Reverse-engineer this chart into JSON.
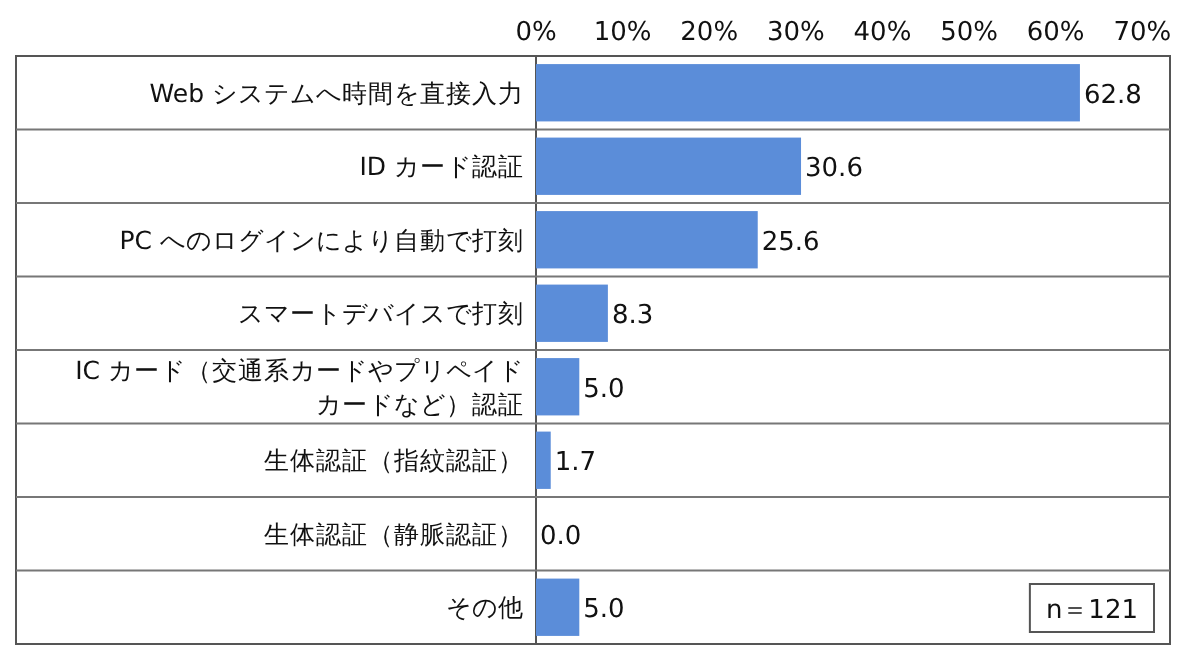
{
  "chart_data": {
    "type": "bar",
    "orientation": "horizontal",
    "categories": [
      "Web システムへ時間を直接入力",
      "ID カード認証",
      "PC へのログインにより自動で打刻",
      "スマートデバイスで打刻",
      "IC カード（交通系カードやプリペイドカードなど）認証",
      "生体認証（指紋認証）",
      "生体認証（静脈認証）",
      "その他"
    ],
    "values": [
      62.8,
      30.6,
      25.6,
      8.3,
      5.0,
      1.7,
      0.0,
      5.0
    ],
    "value_labels": [
      "62.8",
      "30.6",
      "25.6",
      "8.3",
      "5.0",
      "1.7",
      "0.0",
      "5.0"
    ],
    "color": "#5b8dd9",
    "xlim": [
      0,
      73.2
    ],
    "xticks": [
      {
        "value": 0,
        "label": "0%"
      },
      {
        "value": 10,
        "label": "10%"
      },
      {
        "value": 20,
        "label": "20%"
      },
      {
        "value": 30,
        "label": "30%"
      },
      {
        "value": 40,
        "label": "40%"
      },
      {
        "value": 50,
        "label": "50%"
      },
      {
        "value": 60,
        "label": "60%"
      },
      {
        "value": 70,
        "label": "70%"
      }
    ],
    "grid": "y",
    "annotations": [
      "n＝121"
    ]
  }
}
